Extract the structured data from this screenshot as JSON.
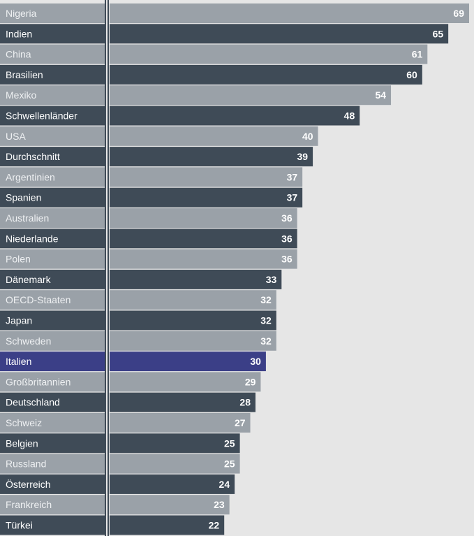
{
  "chart_data": {
    "type": "bar",
    "orientation": "horizontal",
    "categories": [
      "Nigeria",
      "Indien",
      "China",
      "Brasilien",
      "Mexiko",
      "Schwellenländer",
      "USA",
      "Durchschnitt",
      "Argentinien",
      "Spanien",
      "Australien",
      "Niederlande",
      "Polen",
      "Dänemark",
      "OECD-Staaten",
      "Japan",
      "Schweden",
      "Italien",
      "Großbritannien",
      "Deutschland",
      "Schweiz",
      "Belgien",
      "Russland",
      "Österreich",
      "Frankreich",
      "Türkei"
    ],
    "values": [
      69,
      65,
      61,
      60,
      54,
      48,
      40,
      39,
      37,
      37,
      36,
      36,
      36,
      33,
      32,
      32,
      32,
      30,
      29,
      28,
      27,
      25,
      25,
      24,
      23,
      22
    ],
    "highlight": "Italien",
    "xlim": [
      0,
      71
    ],
    "data_labels": true,
    "grid": false,
    "legend": "none",
    "colors": {
      "plot_background": "#e6e6e6",
      "bar_light": "#9aa1a8",
      "bar_dark": "#3f4b57",
      "bar_highlight": "#3b3f87",
      "label_text_light": "#eef0f2",
      "label_text_dark": "#ffffff",
      "separator": "#3f4b57"
    }
  }
}
